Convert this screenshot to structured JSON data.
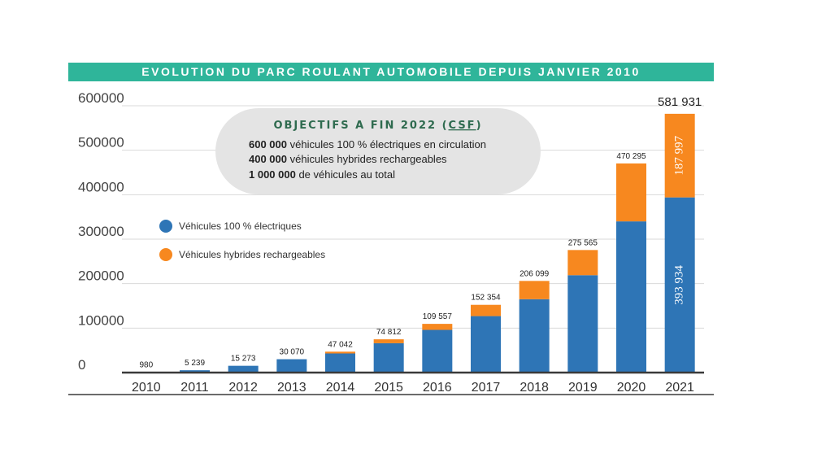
{
  "chart_data": {
    "type": "bar",
    "stacked": true,
    "title": "EVOLUTION DU PARC ROULANT AUTOMOBILE DEPUIS JANVIER 2010",
    "categories": [
      "2010",
      "2011",
      "2012",
      "2013",
      "2014",
      "2015",
      "2016",
      "2017",
      "2018",
      "2019",
      "2020",
      "2021"
    ],
    "totals": [
      980,
      5239,
      15273,
      30070,
      47042,
      74812,
      109557,
      152354,
      206099,
      275565,
      470295,
      581931
    ],
    "total_labels": [
      "980",
      "5 239",
      "15 273",
      "30 070",
      "47 042",
      "74 812",
      "109 557",
      "152 354",
      "206 099",
      "275 565",
      "470 295",
      "581 931"
    ],
    "series": [
      {
        "name": "Véhicules 100 % électriques",
        "color": "#2e75b6",
        "values": [
          980,
          5239,
          15273,
          30070,
          43000,
          66000,
          96000,
          127000,
          165000,
          219000,
          340000,
          393934
        ]
      },
      {
        "name": "Véhicules hybrides rechargeables",
        "color": "#f7881f",
        "values": [
          0,
          0,
          0,
          0,
          4042,
          8812,
          13557,
          25354,
          41099,
          56565,
          130295,
          187997
        ]
      }
    ],
    "segment_labels_2021": {
      "electric": "393 934",
      "hybrid": "187 997"
    },
    "yticks": [
      0,
      100000,
      200000,
      300000,
      400000,
      500000,
      600000
    ],
    "ytick_labels": [
      "0",
      "100000",
      "200000",
      "300000",
      "400000",
      "500000",
      "600000"
    ],
    "ylim": [
      0,
      600000
    ],
    "grid": true,
    "legend_position": "left"
  },
  "objectives": {
    "title_prefix": "OBJECTIFS A FIN 2022 (",
    "title_abbr": "CSF",
    "title_suffix": ")",
    "lines": [
      {
        "bold": "600 000",
        "text": " véhicules 100 % électriques en circulation"
      },
      {
        "bold": "400 000",
        "text": " véhicules hybrides rechargeables"
      },
      {
        "bold": "1 000 000",
        "text": " de véhicules au total"
      }
    ]
  }
}
